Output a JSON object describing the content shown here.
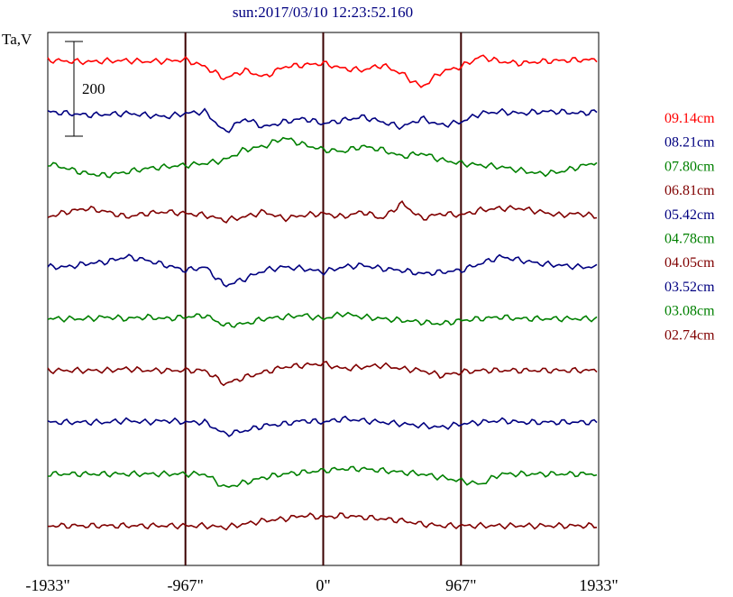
{
  "chart_data": {
    "type": "line",
    "title": "sun:2017/03/10 12:23:52.160",
    "ylabel": "Ta,V",
    "scale_bar_label": "200",
    "x_ticks": [
      "-1933\"",
      "-967\"",
      "0\"",
      "967\"",
      "1933\""
    ],
    "xlim": [
      -1933,
      1933
    ],
    "vertical_lines_at": [
      -967,
      0,
      967
    ],
    "series": [
      {
        "name": "09.14cm",
        "color": "#ff0000",
        "offset_units": 9,
        "profile": [
          0.0,
          0.04,
          0.06,
          0.03,
          0.02,
          0.05,
          0.03,
          0.0,
          0.2,
          0.55,
          0.3,
          0.5,
          0.2,
          0.15,
          0.1,
          0.25,
          0.3,
          0.15,
          0.4,
          0.8,
          0.35,
          0.2,
          -0.1,
          0.05,
          0.1,
          0.05,
          0.02,
          0.0,
          0.0
        ]
      },
      {
        "name": "08.21cm",
        "color": "#000080",
        "offset_units": 8,
        "profile": [
          0.0,
          0.05,
          0.1,
          0.08,
          0.05,
          0.1,
          0.15,
          0.05,
          0.0,
          0.6,
          0.2,
          0.45,
          0.3,
          0.2,
          0.35,
          0.25,
          0.15,
          0.3,
          0.45,
          0.2,
          0.4,
          0.3,
          0.05,
          0.0,
          0.05,
          0.0,
          0.0,
          0.05,
          0.0
        ]
      },
      {
        "name": "07.80cm",
        "color": "#008000",
        "offset_units": 7,
        "profile": [
          0.0,
          0.15,
          0.3,
          0.35,
          0.25,
          0.15,
          0.1,
          0.05,
          0.0,
          -0.1,
          -0.4,
          -0.5,
          -0.75,
          -0.55,
          -0.4,
          -0.35,
          -0.5,
          -0.4,
          -0.2,
          -0.3,
          -0.1,
          0.0,
          0.05,
          0.1,
          0.2,
          0.3,
          0.25,
          0.1,
          -0.05
        ]
      },
      {
        "name": "06.81cm",
        "color": "#800000",
        "offset_units": 6,
        "profile": [
          0.05,
          -0.1,
          -0.2,
          -0.1,
          0.05,
          -0.05,
          -0.1,
          -0.05,
          0.0,
          0.15,
          0.05,
          -0.1,
          0.1,
          0.0,
          -0.05,
          0.05,
          -0.1,
          0.1,
          -0.35,
          0.1,
          -0.05,
          0.0,
          -0.15,
          -0.2,
          -0.2,
          -0.1,
          0.0,
          -0.05,
          0.05
        ]
      },
      {
        "name": "05.42cm",
        "color": "#000080",
        "offset_units": 5,
        "profile": [
          0.0,
          0.0,
          -0.1,
          -0.15,
          -0.3,
          -0.2,
          -0.05,
          0.1,
          0.0,
          0.55,
          0.35,
          0.1,
          0.0,
          0.05,
          0.15,
          0.0,
          -0.05,
          0.05,
          0.1,
          0.2,
          0.15,
          0.1,
          -0.1,
          -0.3,
          -0.2,
          -0.1,
          -0.05,
          0.0,
          0.0
        ]
      },
      {
        "name": "04.78cm",
        "color": "#008000",
        "offset_units": 4,
        "profile": [
          0.0,
          0.0,
          0.0,
          -0.05,
          0.0,
          -0.05,
          0.0,
          -0.05,
          -0.1,
          0.2,
          0.15,
          0.0,
          -0.05,
          -0.1,
          0.0,
          -0.15,
          -0.05,
          0.0,
          0.05,
          0.1,
          0.15,
          0.05,
          0.0,
          -0.05,
          0.0,
          0.0,
          0.0,
          0.0,
          0.0
        ]
      },
      {
        "name": "04.05cm",
        "color": "#800000",
        "offset_units": 3,
        "profile": [
          0.0,
          0.0,
          0.0,
          0.0,
          -0.05,
          0.0,
          0.0,
          0.0,
          0.0,
          0.4,
          0.2,
          0.05,
          -0.1,
          -0.15,
          -0.2,
          -0.05,
          -0.1,
          -0.15,
          -0.05,
          0.0,
          0.15,
          0.05,
          0.0,
          0.0,
          0.0,
          0.0,
          0.0,
          0.0,
          0.0
        ]
      },
      {
        "name": "03.52cm",
        "color": "#000080",
        "offset_units": 2,
        "profile": [
          0.0,
          0.0,
          0.0,
          0.0,
          -0.05,
          0.0,
          -0.05,
          0.0,
          0.0,
          0.35,
          0.25,
          0.1,
          0.05,
          -0.05,
          0.0,
          -0.1,
          -0.05,
          0.0,
          0.05,
          0.1,
          0.15,
          0.05,
          0.0,
          -0.05,
          0.0,
          0.0,
          0.0,
          0.0,
          0.0
        ]
      },
      {
        "name": "03.08cm",
        "color": "#008000",
        "offset_units": 1,
        "profile": [
          0.0,
          0.0,
          0.0,
          0.0,
          0.0,
          0.0,
          0.0,
          0.0,
          0.0,
          0.4,
          0.25,
          0.1,
          0.0,
          -0.05,
          -0.1,
          -0.15,
          -0.15,
          -0.1,
          -0.05,
          0.0,
          0.1,
          0.2,
          0.3,
          0.0,
          0.0,
          0.0,
          0.0,
          0.0,
          0.0
        ]
      },
      {
        "name": "02.74cm",
        "color": "#800000",
        "offset_units": 0,
        "profile": [
          0.0,
          0.0,
          0.0,
          0.0,
          0.0,
          0.0,
          0.0,
          0.0,
          0.0,
          0.05,
          -0.05,
          -0.15,
          -0.2,
          -0.3,
          -0.25,
          -0.3,
          -0.25,
          -0.2,
          -0.15,
          -0.05,
          0.0,
          0.0,
          0.0,
          0.0,
          0.0,
          0.0,
          0.0,
          0.0,
          0.0
        ]
      }
    ],
    "grid": false,
    "legend_position": "right"
  }
}
